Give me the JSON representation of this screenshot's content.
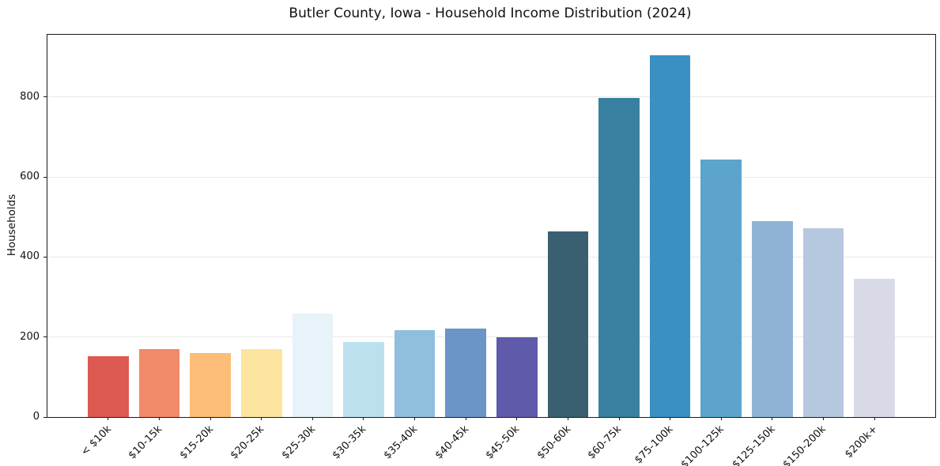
{
  "chart_data": {
    "type": "bar",
    "title": "Butler County, Iowa - Household Income Distribution (2024)",
    "xlabel": "",
    "ylabel": "Households",
    "categories": [
      "< $10k",
      "$10-15k",
      "$15-20k",
      "$20-25k",
      "$25-30k",
      "$30-35k",
      "$35-40k",
      "$40-45k",
      "$45-50k",
      "$50-60k",
      "$60-75k",
      "$75-100k",
      "$100-125k",
      "$125-150k",
      "$150-200k",
      "$200k+"
    ],
    "values": [
      152,
      170,
      160,
      170,
      258,
      187,
      218,
      222,
      199,
      465,
      798,
      905,
      644,
      490,
      473,
      346
    ],
    "bar_colors": [
      "#dc5a51",
      "#f08a68",
      "#fbbd77",
      "#fde5a0",
      "#e7f3f8",
      "#bce0ee",
      "#90bedd",
      "#6b94c7",
      "#5f5aa9",
      "#3a5f71",
      "#38809f",
      "#3a90c2",
      "#5ca4ca",
      "#8fb3d6",
      "#b5c8e0",
      "#d8dae8"
    ],
    "yticks": [
      0,
      200,
      400,
      600,
      800
    ],
    "ylim": [
      0,
      956
    ],
    "grid": "horizontal",
    "legend": "none",
    "xtick_rotation_deg": 45,
    "spine_color": "#1a1a1a",
    "grid_color": "#e8e8e8"
  }
}
